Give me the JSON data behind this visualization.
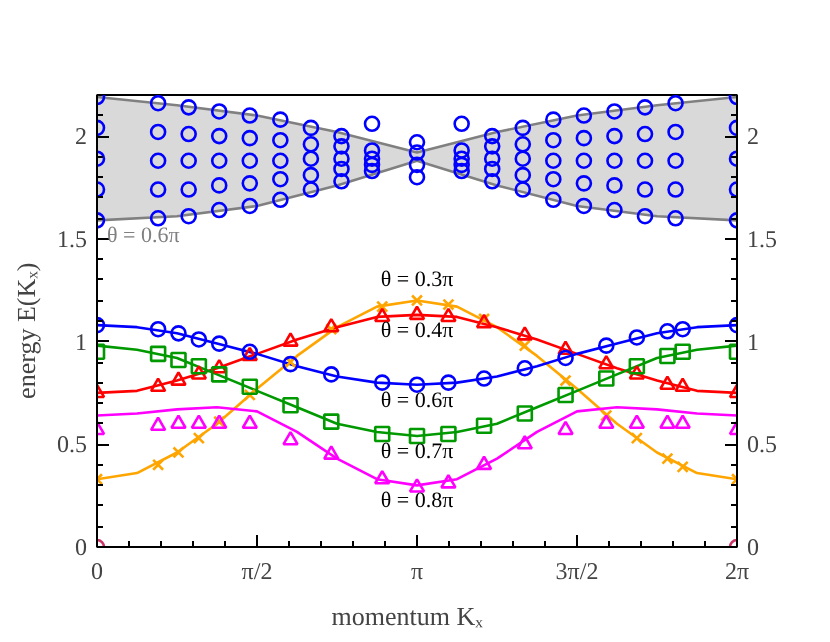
{
  "chart_data": {
    "type": "line",
    "xlabel": "momentum    Kₓ",
    "ylabel": "energy    E(Kₓ)",
    "x": [
      0,
      0.3927,
      0.7854,
      1.1781,
      1.5708,
      1.9635,
      2.3562,
      2.7489,
      3.1416,
      3.5343,
      3.927,
      4.3197,
      4.7124,
      5.1051,
      5.4978,
      5.8905,
      6.2832
    ],
    "xlim": [
      0,
      6.2832
    ],
    "ylim": [
      0,
      2.2
    ],
    "y2lim": [
      0,
      2.2
    ],
    "xticks": [
      0,
      {
        "value": 0.3142,
        "label": null
      },
      {
        "value": 0.6283,
        "label": null
      },
      {
        "value": 0.9425,
        "label": null
      },
      {
        "value": 1.2566,
        "label": null
      },
      {
        "value": 1.5708,
        "label": "π/2"
      },
      {
        "value": 1.885,
        "label": null
      },
      {
        "value": 2.1991,
        "label": null
      },
      {
        "value": 2.5133,
        "label": null
      },
      {
        "value": 2.8274,
        "label": null
      },
      {
        "value": 3.1416,
        "label": "π"
      },
      {
        "value": 3.4558,
        "label": null
      },
      {
        "value": 3.7699,
        "label": null
      },
      {
        "value": 4.0841,
        "label": null
      },
      {
        "value": 4.3982,
        "label": null
      },
      {
        "value": 4.7124,
        "label": "3π/2"
      },
      {
        "value": 5.0265,
        "label": null
      },
      {
        "value": 5.3407,
        "label": null
      },
      {
        "value": 5.6549,
        "label": null
      },
      {
        "value": 5.969,
        "label": null
      },
      {
        "value": 6.2832,
        "label": "2π"
      }
    ],
    "yticks": [
      0,
      {
        "value": 0.1,
        "label": null
      },
      {
        "value": 0.2,
        "label": null
      },
      {
        "value": 0.3,
        "label": null
      },
      {
        "value": 0.4,
        "label": null
      },
      0.5,
      {
        "value": 0.6,
        "label": null
      },
      {
        "value": 0.7,
        "label": null
      },
      {
        "value": 0.8,
        "label": null
      },
      {
        "value": 0.9,
        "label": null
      },
      1,
      {
        "value": 1.1,
        "label": null
      },
      {
        "value": 1.2,
        "label": null
      },
      {
        "value": 1.3,
        "label": null
      },
      {
        "value": 1.4,
        "label": null
      },
      1.5,
      {
        "value": 1.6,
        "label": null
      },
      {
        "value": 1.7,
        "label": null
      },
      {
        "value": 1.8,
        "label": null
      },
      {
        "value": 1.9,
        "label": null
      },
      2,
      {
        "value": 2.1,
        "label": null
      }
    ],
    "y2ticks": [
      0,
      {
        "value": 0.1,
        "label": null
      },
      {
        "value": 0.2,
        "label": null
      },
      {
        "value": 0.3,
        "label": null
      },
      {
        "value": 0.4,
        "label": null
      },
      0.5,
      {
        "value": 0.6,
        "label": null
      },
      {
        "value": 0.7,
        "label": null
      },
      {
        "value": 0.8,
        "label": null
      },
      {
        "value": 0.9,
        "label": null
      },
      1,
      {
        "value": 1.1,
        "label": null
      },
      {
        "value": 1.2,
        "label": null
      },
      {
        "value": 1.3,
        "label": null
      },
      {
        "value": 1.4,
        "label": null
      },
      1.5,
      {
        "value": 1.6,
        "label": null
      },
      {
        "value": 1.7,
        "label": null
      },
      {
        "value": 1.8,
        "label": null
      },
      {
        "value": 1.9,
        "label": null
      },
      2,
      {
        "value": 2.1,
        "label": null
      }
    ],
    "series": [
      {
        "color": "#808080",
        "x": [
          0,
          0.7854,
          1.5708,
          2.3562,
          3.1416,
          3.927,
          4.7124,
          5.4978,
          6.2832
        ],
        "values": [
          2.19,
          2.15,
          2.1,
          2.02,
          1.92,
          2.02,
          2.1,
          2.15,
          2.19
        ]
      },
      {
        "name": "θ = 0.6π",
        "color": "#808080",
        "x": [
          0,
          0.7854,
          1.5708,
          2.3562,
          3.1416,
          3.927,
          4.7124,
          5.4978,
          6.2832
        ],
        "values": [
          1.59,
          1.61,
          1.66,
          1.76,
          1.88,
          1.76,
          1.66,
          1.61,
          1.59
        ],
        "lower": [
          1.59,
          1.61,
          1.66,
          1.76,
          1.88,
          1.76,
          1.66,
          1.61,
          1.59
        ],
        "upper": [
          2.19,
          2.15,
          2.1,
          2.02,
          1.92,
          2.02,
          2.1,
          2.15,
          2.19
        ]
      },
      {
        "type": "scatter",
        "marker": "circle",
        "color": "#0000ff",
        "x": [
          0,
          0,
          0,
          0,
          0,
          0.6,
          0.6,
          0.6,
          0.6,
          0.6,
          0.9,
          0.9,
          0.9,
          0.9,
          0.9,
          1.2,
          1.2,
          1.2,
          1.2,
          1.2,
          1.5,
          1.5,
          1.5,
          1.5,
          1.5,
          1.8,
          1.8,
          1.8,
          1.8,
          1.8,
          2.1,
          2.1,
          2.1,
          2.1,
          2.1,
          2.4,
          2.4,
          2.4,
          2.4,
          2.4,
          2.7,
          2.7,
          2.7,
          2.7,
          2.7,
          3.1416,
          3.1416,
          3.1416,
          3.1416,
          3.58,
          3.58,
          3.58,
          3.58,
          3.58,
          3.88,
          3.88,
          3.88,
          3.88,
          3.88,
          4.18,
          4.18,
          4.18,
          4.18,
          4.18,
          4.48,
          4.48,
          4.48,
          4.48,
          4.48,
          4.78,
          4.78,
          4.78,
          4.78,
          4.78,
          5.08,
          5.08,
          5.08,
          5.08,
          5.08,
          5.38,
          5.38,
          5.38,
          5.38,
          5.38,
          5.68,
          5.68,
          5.68,
          5.68,
          5.68,
          6.2832,
          6.2832,
          6.2832,
          6.2832,
          6.2832
        ],
        "values": [
          1.59,
          1.74,
          1.89,
          2.04,
          2.19,
          1.6,
          1.74,
          1.88,
          2.02,
          2.16,
          1.61,
          1.74,
          1.88,
          2.01,
          2.14,
          1.64,
          1.76,
          1.88,
          2.0,
          2.12,
          1.66,
          1.77,
          1.88,
          1.99,
          2.1,
          1.69,
          1.79,
          1.88,
          1.98,
          2.08,
          1.74,
          1.81,
          1.89,
          1.96,
          2.04,
          1.78,
          1.84,
          1.89,
          1.95,
          2.0,
          1.83,
          1.86,
          1.89,
          1.93,
          2.06,
          1.8,
          1.86,
          1.92,
          1.97,
          1.83,
          1.86,
          1.89,
          1.93,
          2.06,
          1.78,
          1.84,
          1.89,
          1.95,
          2.0,
          1.74,
          1.81,
          1.89,
          1.96,
          2.04,
          1.69,
          1.79,
          1.88,
          1.98,
          2.08,
          1.66,
          1.77,
          1.88,
          1.99,
          2.1,
          1.64,
          1.76,
          1.88,
          2.0,
          2.12,
          1.61,
          1.74,
          1.88,
          2.01,
          2.14,
          1.6,
          1.74,
          1.88,
          2.02,
          2.16,
          1.59,
          1.74,
          1.89,
          2.04,
          2.19
        ]
      },
      {
        "name": "θ = 0.3π",
        "color": "#ffa500",
        "values": [
          0.33,
          0.36,
          0.46,
          0.6,
          0.77,
          0.93,
          1.07,
          1.17,
          1.2,
          1.17,
          1.07,
          0.93,
          0.77,
          0.6,
          0.46,
          0.36,
          0.33
        ]
      },
      {
        "name": "θ = 0.4π",
        "color": "#ff0000",
        "values": [
          0.75,
          0.76,
          0.81,
          0.87,
          0.94,
          1.01,
          1.07,
          1.12,
          1.13,
          1.12,
          1.07,
          1.01,
          0.94,
          0.87,
          0.81,
          0.76,
          0.75
        ]
      },
      {
        "name": "θ = 0.6π",
        "color": "#0000ff",
        "values": [
          1.08,
          1.07,
          1.04,
          0.99,
          0.94,
          0.88,
          0.83,
          0.8,
          0.79,
          0.8,
          0.83,
          0.88,
          0.94,
          0.99,
          1.04,
          1.07,
          1.08
        ]
      },
      {
        "name": "θ = 0.7π",
        "color": "#009900",
        "values": [
          0.98,
          0.96,
          0.92,
          0.84,
          0.76,
          0.68,
          0.6,
          0.56,
          0.54,
          0.56,
          0.6,
          0.68,
          0.76,
          0.84,
          0.92,
          0.96,
          0.98
        ]
      },
      {
        "name": "θ = 0.8π",
        "color": "#ff00ff",
        "values": [
          0.64,
          0.65,
          0.67,
          0.68,
          0.66,
          0.56,
          0.43,
          0.33,
          0.3,
          0.33,
          0.43,
          0.56,
          0.66,
          0.68,
          0.67,
          0.65,
          0.64
        ]
      },
      {
        "type": "scatter",
        "marker": "cross",
        "color": "#ffa500",
        "x": [
          0,
          0.6,
          0.8,
          1.0,
          1.2,
          1.5,
          1.9,
          2.3,
          2.8,
          3.1416,
          3.45,
          3.8,
          4.2,
          4.6,
          5.0,
          5.3,
          5.6,
          5.75,
          6.2832
        ],
        "values": [
          0.33,
          0.4,
          0.46,
          0.53,
          0.61,
          0.74,
          0.9,
          1.06,
          1.17,
          1.2,
          1.18,
          1.11,
          0.98,
          0.81,
          0.64,
          0.53,
          0.43,
          0.39,
          0.33
        ]
      },
      {
        "type": "scatter",
        "marker": "triangle",
        "color": "#ff0000",
        "x": [
          0,
          0.6,
          0.8,
          1.0,
          1.2,
          1.5,
          1.9,
          2.3,
          2.8,
          3.1416,
          3.45,
          3.8,
          4.2,
          4.6,
          5.0,
          5.3,
          5.6,
          5.75,
          6.2832
        ],
        "values": [
          0.75,
          0.78,
          0.81,
          0.84,
          0.87,
          0.93,
          1.0,
          1.07,
          1.12,
          1.13,
          1.12,
          1.09,
          1.03,
          0.96,
          0.89,
          0.84,
          0.79,
          0.78,
          0.75
        ]
      },
      {
        "type": "scatter",
        "marker": "circle",
        "color": "#0000ff",
        "x": [
          0,
          0.6,
          0.8,
          1.0,
          1.2,
          1.5,
          1.9,
          2.3,
          2.8,
          3.1416,
          3.45,
          3.8,
          4.2,
          4.6,
          5.0,
          5.3,
          5.6,
          5.75,
          6.2832
        ],
        "values": [
          1.08,
          1.06,
          1.04,
          1.01,
          0.99,
          0.95,
          0.89,
          0.84,
          0.8,
          0.79,
          0.8,
          0.82,
          0.87,
          0.92,
          0.98,
          1.02,
          1.05,
          1.06,
          1.08
        ]
      },
      {
        "type": "scatter",
        "marker": "square",
        "color": "#009900",
        "x": [
          0,
          0.6,
          0.8,
          1.0,
          1.2,
          1.5,
          1.9,
          2.3,
          2.8,
          3.1416,
          3.45,
          3.8,
          4.2,
          4.6,
          5.0,
          5.3,
          5.6,
          5.75,
          6.2832
        ],
        "values": [
          0.95,
          0.94,
          0.91,
          0.88,
          0.84,
          0.78,
          0.69,
          0.61,
          0.55,
          0.54,
          0.55,
          0.59,
          0.65,
          0.74,
          0.82,
          0.88,
          0.93,
          0.95,
          0.95
        ]
      },
      {
        "type": "scatter",
        "marker": "triangle",
        "color": "#ff00ff",
        "x": [
          0,
          0.6,
          0.8,
          1.0,
          1.2,
          1.5,
          1.9,
          2.3,
          2.8,
          3.1416,
          3.45,
          3.8,
          4.2,
          4.6,
          5.0,
          5.3,
          5.6,
          5.75,
          6.2832
        ],
        "values": [
          0.57,
          0.59,
          0.6,
          0.6,
          0.6,
          0.6,
          0.52,
          0.45,
          0.33,
          0.29,
          0.31,
          0.4,
          0.5,
          0.57,
          0.6,
          0.6,
          0.6,
          0.6,
          0.57
        ]
      },
      {
        "type": "scatter",
        "marker": "circle",
        "color": "#cc3366",
        "x": [
          0,
          6.2832
        ],
        "values": [
          0,
          0
        ]
      }
    ]
  }
}
